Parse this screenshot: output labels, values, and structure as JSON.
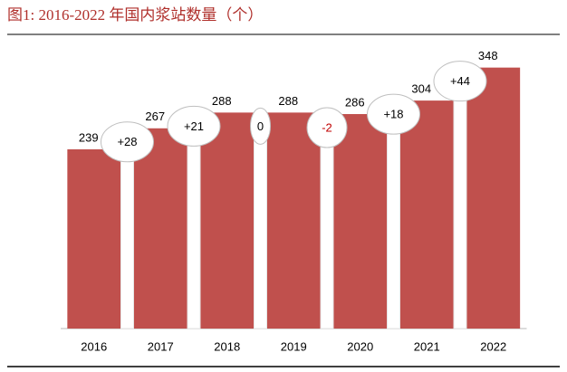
{
  "chart_data": {
    "type": "bar",
    "title": "图1:  2016-2022 年国内浆站数量（个）",
    "categories": [
      "2016",
      "2017",
      "2018",
      "2019",
      "2020",
      "2021",
      "2022"
    ],
    "values": [
      239,
      267,
      288,
      288,
      286,
      304,
      348
    ],
    "color": "#c0504d",
    "ylim": [
      0,
      350
    ],
    "changes": [
      {
        "value": 28,
        "label": "+28"
      },
      {
        "value": 21,
        "label": "+21"
      },
      0,
      -2,
      {
        "value": 18,
        "label": "+18"
      },
      {
        "value": 44,
        "label": "+44"
      }
    ],
    "negative_color": "#c00000"
  }
}
